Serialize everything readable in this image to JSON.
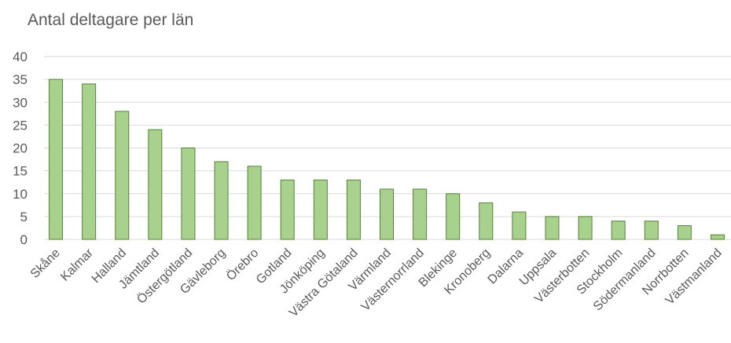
{
  "chart_data": {
    "type": "bar",
    "title": "Antal deltagare per län",
    "xlabel": "",
    "ylabel": "",
    "ylim": [
      0,
      40
    ],
    "yticks": [
      0,
      5,
      10,
      15,
      20,
      25,
      30,
      35,
      40
    ],
    "grid": true,
    "categories": [
      "Skåne",
      "Kalmar",
      "Halland",
      "Jämtland",
      "Östergötland",
      "Gävleborg",
      "Örebro",
      "Gotland",
      "Jönköping",
      "Västra Götaland",
      "Värmland",
      "Västernorrland",
      "Blekinge",
      "Kronoberg",
      "Dalarna",
      "Uppsala",
      "Västerbotten",
      "Stockholm",
      "Södermanland",
      "Norrbotten",
      "Västmanland"
    ],
    "values": [
      35,
      34,
      28,
      24,
      20,
      17,
      16,
      13,
      13,
      13,
      11,
      11,
      10,
      8,
      6,
      5,
      5,
      4,
      4,
      3,
      1
    ],
    "colors": {
      "bar_fill": "#a9d18e",
      "bar_stroke": "#548235",
      "grid": "#d9d9d9",
      "axis": "#d9d9d9",
      "text": "#595959"
    }
  }
}
